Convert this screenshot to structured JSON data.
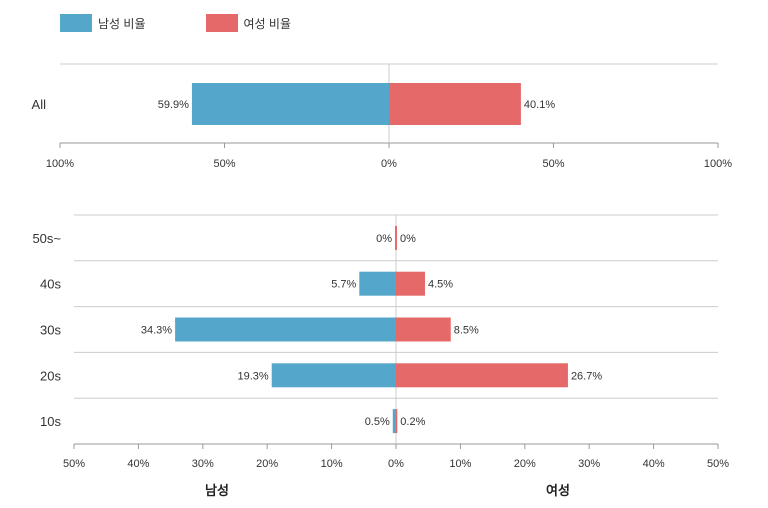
{
  "legend": {
    "male_label": "남성 비율",
    "female_label": "여성 비율",
    "male_color": "#54a7cb",
    "female_color": "#e6696a"
  },
  "chart_data": [
    {
      "type": "bar",
      "orientation": "horizontal-diverging",
      "categories": [
        "All"
      ],
      "series": [
        {
          "name": "남성 비율",
          "values": [
            59.9
          ],
          "labels": [
            "59.9%"
          ]
        },
        {
          "name": "여성 비율",
          "values": [
            40.1
          ],
          "labels": [
            "40.1%"
          ]
        }
      ],
      "xlim": [
        -100,
        100
      ],
      "ticks": [
        "100%",
        "50%",
        "0%",
        "50%",
        "100%"
      ],
      "grid": true
    },
    {
      "type": "bar",
      "orientation": "horizontal-diverging",
      "categories": [
        "50s~",
        "40s",
        "30s",
        "20s",
        "10s"
      ],
      "series": [
        {
          "name": "남성 비율",
          "values": [
            0,
            5.7,
            34.3,
            19.3,
            0.5
          ],
          "labels": [
            "0%",
            "5.7%",
            "34.3%",
            "19.3%",
            "0.5%"
          ]
        },
        {
          "name": "여성 비율",
          "values": [
            0,
            4.5,
            8.5,
            26.7,
            0.2
          ],
          "labels": [
            "0%",
            "4.5%",
            "8.5%",
            "26.7%",
            "0.2%"
          ]
        }
      ],
      "xlim": [
        -50,
        50
      ],
      "ticks": [
        "50%",
        "40%",
        "30%",
        "20%",
        "10%",
        "0%",
        "10%",
        "20%",
        "30%",
        "40%",
        "50%"
      ],
      "xlabel_left": "남성",
      "xlabel_right": "여성",
      "grid": true
    }
  ]
}
